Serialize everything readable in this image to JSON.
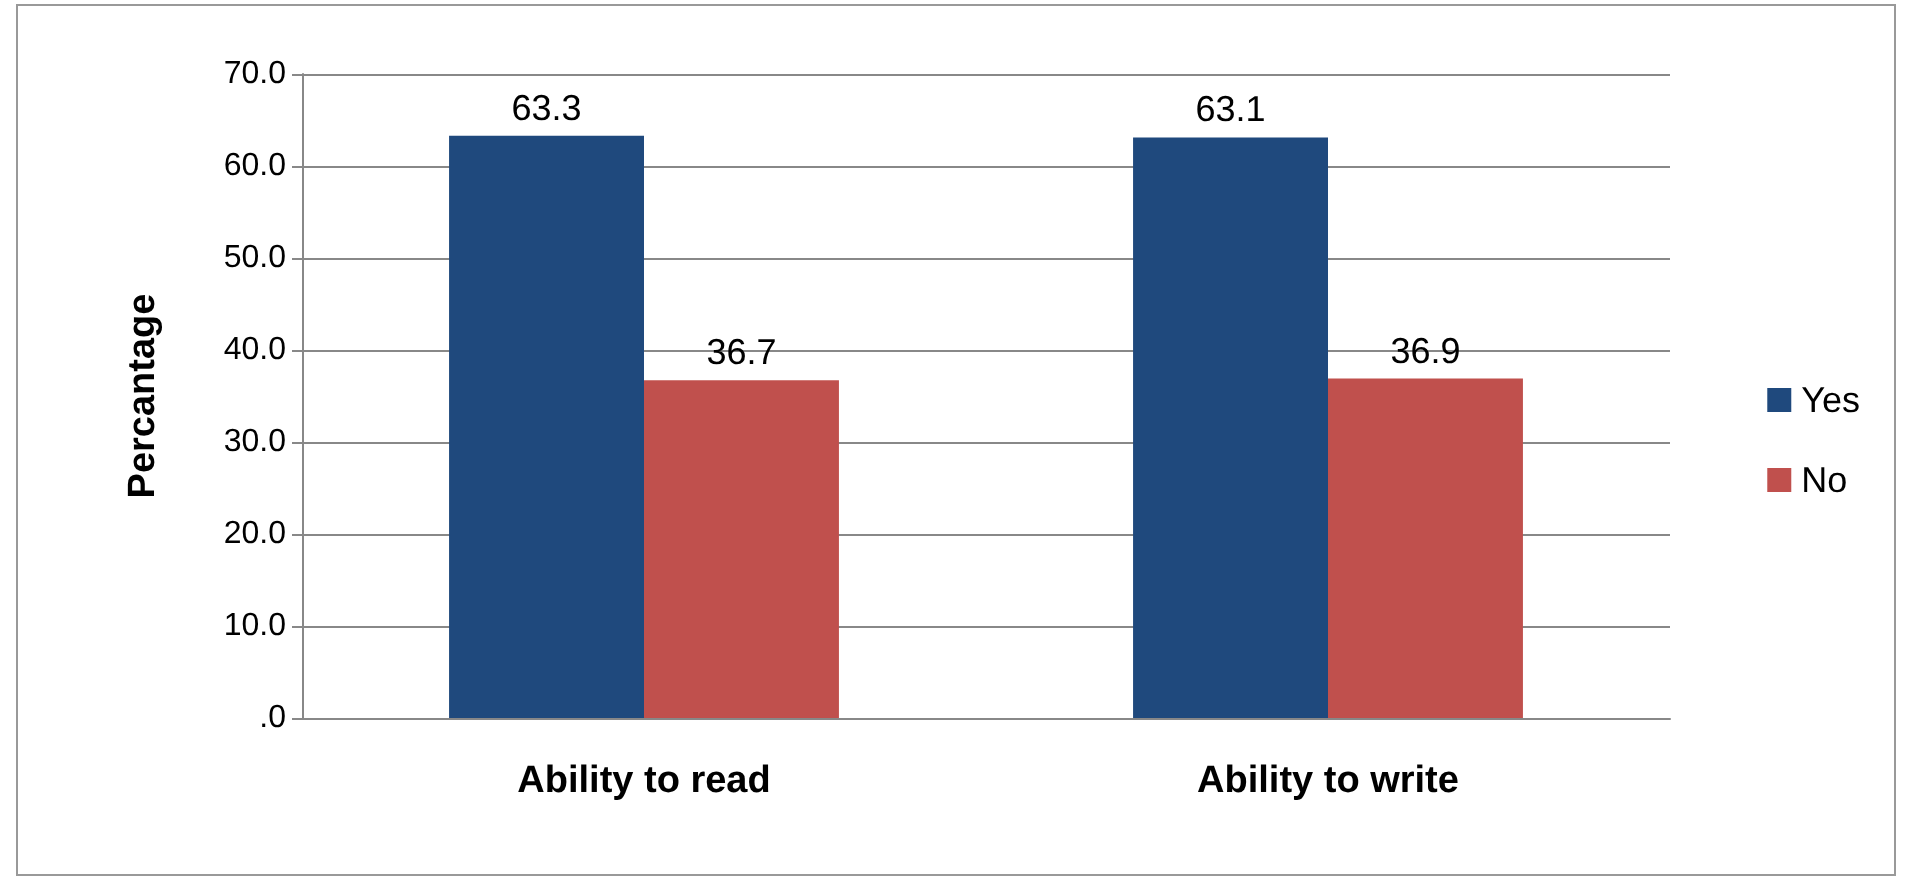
{
  "chart_data": {
    "type": "bar",
    "ylabel": "Percantage",
    "categories": [
      "Ability to read",
      "Ability to write"
    ],
    "series": [
      {
        "name": "Yes",
        "color": "#1f497d",
        "values": [
          63.3,
          63.1
        ]
      },
      {
        "name": "No",
        "color": "#c0504d",
        "values": [
          36.7,
          36.9
        ]
      }
    ],
    "ylim": [
      0,
      70
    ],
    "yticks": [
      {
        "value": 0,
        "label": ".0"
      },
      {
        "value": 10,
        "label": "10.0"
      },
      {
        "value": 20,
        "label": "20.0"
      },
      {
        "value": 30,
        "label": "30.0"
      },
      {
        "value": 40,
        "label": "40.0"
      },
      {
        "value": 50,
        "label": "50.0"
      },
      {
        "value": 60,
        "label": "60.0"
      },
      {
        "value": 70,
        "label": "70.0"
      }
    ],
    "grid": "y",
    "legend": "right",
    "data_labels": true
  }
}
